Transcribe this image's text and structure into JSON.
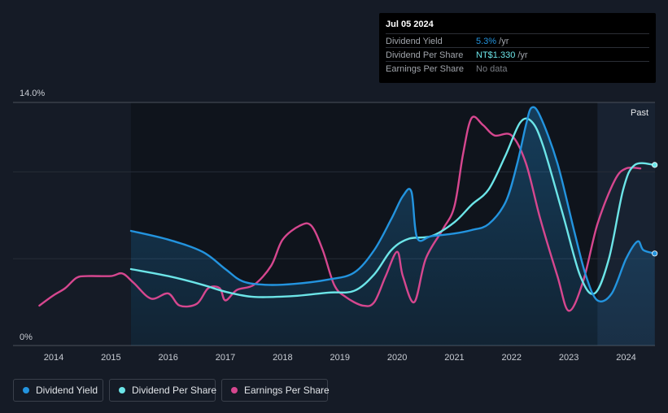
{
  "tooltip": {
    "date": "Jul 05 2024",
    "rows": [
      {
        "label": "Dividend Yield",
        "value": "5.3%",
        "unit": " /yr",
        "color": "#2394df"
      },
      {
        "label": "Dividend Per Share",
        "value": "NT$1.330",
        "unit": " /yr",
        "color": "#6ce5e8"
      },
      {
        "label": "Earnings Per Share",
        "value": "No data",
        "unit": "",
        "color": "#7a7e85"
      }
    ]
  },
  "legend": [
    {
      "label": "Dividend Yield",
      "color": "#2394df"
    },
    {
      "label": "Dividend Per Share",
      "color": "#6ce5e8"
    },
    {
      "label": "Earnings Per Share",
      "color": "#d6478f"
    }
  ],
  "chart_data": {
    "type": "line",
    "y_top_label": "14.0%",
    "y_bottom_label": "0%",
    "ylim": [
      0,
      14
    ],
    "xlim": [
      2013.7,
      2024.5
    ],
    "x_ticks": [
      "2014",
      "2015",
      "2016",
      "2017",
      "2018",
      "2019",
      "2020",
      "2021",
      "2022",
      "2023",
      "2024"
    ],
    "past_label": "Past",
    "past_start": 2023.5,
    "grid": true,
    "series": [
      {
        "name": "Dividend Yield",
        "color": "#2394df",
        "filled": true,
        "points": [
          [
            2015.35,
            6.6
          ],
          [
            2016.0,
            6.1
          ],
          [
            2016.6,
            5.4
          ],
          [
            2017.0,
            4.4
          ],
          [
            2017.3,
            3.7
          ],
          [
            2017.7,
            3.5
          ],
          [
            2018.2,
            3.55
          ],
          [
            2018.8,
            3.8
          ],
          [
            2019.25,
            4.2
          ],
          [
            2019.6,
            5.5
          ],
          [
            2019.9,
            7.3
          ],
          [
            2020.1,
            8.6
          ],
          [
            2020.25,
            8.85
          ],
          [
            2020.35,
            6.2
          ],
          [
            2020.6,
            6.3
          ],
          [
            2021.0,
            6.45
          ],
          [
            2021.3,
            6.65
          ],
          [
            2021.6,
            7.0
          ],
          [
            2021.9,
            8.3
          ],
          [
            2022.1,
            10.5
          ],
          [
            2022.25,
            12.7
          ],
          [
            2022.35,
            13.7
          ],
          [
            2022.5,
            13.2
          ],
          [
            2022.8,
            10.5
          ],
          [
            2023.1,
            6.5
          ],
          [
            2023.3,
            4.0
          ],
          [
            2023.5,
            2.6
          ],
          [
            2023.75,
            3.0
          ],
          [
            2024.0,
            5.0
          ],
          [
            2024.2,
            6.0
          ],
          [
            2024.3,
            5.5
          ],
          [
            2024.5,
            5.3
          ]
        ]
      },
      {
        "name": "Dividend Per Share",
        "color": "#6ce5e8",
        "filled": false,
        "points": [
          [
            2015.35,
            4.4
          ],
          [
            2016.0,
            4.0
          ],
          [
            2016.6,
            3.5
          ],
          [
            2017.0,
            3.1
          ],
          [
            2017.5,
            2.8
          ],
          [
            2018.2,
            2.85
          ],
          [
            2018.8,
            3.05
          ],
          [
            2019.25,
            3.15
          ],
          [
            2019.6,
            4.1
          ],
          [
            2019.9,
            5.5
          ],
          [
            2020.2,
            6.15
          ],
          [
            2020.6,
            6.3
          ],
          [
            2021.0,
            7.1
          ],
          [
            2021.3,
            8.1
          ],
          [
            2021.6,
            9.0
          ],
          [
            2021.9,
            11.0
          ],
          [
            2022.15,
            12.85
          ],
          [
            2022.35,
            12.9
          ],
          [
            2022.55,
            11.5
          ],
          [
            2022.9,
            7.5
          ],
          [
            2023.2,
            4.0
          ],
          [
            2023.45,
            3.0
          ],
          [
            2023.7,
            5.0
          ],
          [
            2023.95,
            9.0
          ],
          [
            2024.15,
            10.4
          ],
          [
            2024.5,
            10.4
          ]
        ]
      },
      {
        "name": "Earnings Per Share",
        "color": "#d6478f",
        "filled": false,
        "points": [
          [
            2013.75,
            2.3
          ],
          [
            2014.0,
            2.9
          ],
          [
            2014.2,
            3.3
          ],
          [
            2014.4,
            3.9
          ],
          [
            2014.6,
            4.0
          ],
          [
            2015.0,
            4.0
          ],
          [
            2015.2,
            4.15
          ],
          [
            2015.4,
            3.6
          ],
          [
            2015.7,
            2.7
          ],
          [
            2016.0,
            3.0
          ],
          [
            2016.2,
            2.3
          ],
          [
            2016.5,
            2.4
          ],
          [
            2016.7,
            3.3
          ],
          [
            2016.9,
            3.3
          ],
          [
            2017.0,
            2.6
          ],
          [
            2017.2,
            3.2
          ],
          [
            2017.5,
            3.5
          ],
          [
            2017.8,
            4.6
          ],
          [
            2018.0,
            6.1
          ],
          [
            2018.3,
            6.9
          ],
          [
            2018.5,
            6.9
          ],
          [
            2018.7,
            5.5
          ],
          [
            2018.9,
            3.5
          ],
          [
            2019.1,
            2.8
          ],
          [
            2019.4,
            2.3
          ],
          [
            2019.6,
            2.5
          ],
          [
            2019.8,
            4.0
          ],
          [
            2020.0,
            5.4
          ],
          [
            2020.1,
            4.0
          ],
          [
            2020.3,
            2.5
          ],
          [
            2020.5,
            5.0
          ],
          [
            2020.8,
            6.7
          ],
          [
            2021.0,
            8.0
          ],
          [
            2021.15,
            11.0
          ],
          [
            2021.3,
            13.1
          ],
          [
            2021.5,
            12.7
          ],
          [
            2021.7,
            12.1
          ],
          [
            2022.0,
            12.1
          ],
          [
            2022.25,
            10.5
          ],
          [
            2022.5,
            7.3
          ],
          [
            2022.8,
            4.0
          ],
          [
            2023.0,
            2.0
          ],
          [
            2023.25,
            3.7
          ],
          [
            2023.5,
            7.0
          ],
          [
            2023.8,
            9.5
          ],
          [
            2024.0,
            10.2
          ],
          [
            2024.25,
            10.2
          ]
        ]
      }
    ],
    "end_markers": [
      {
        "series": "Dividend Yield",
        "x": 2024.5,
        "y": 5.3
      },
      {
        "series": "Dividend Per Share",
        "x": 2024.5,
        "y": 10.4
      }
    ]
  }
}
